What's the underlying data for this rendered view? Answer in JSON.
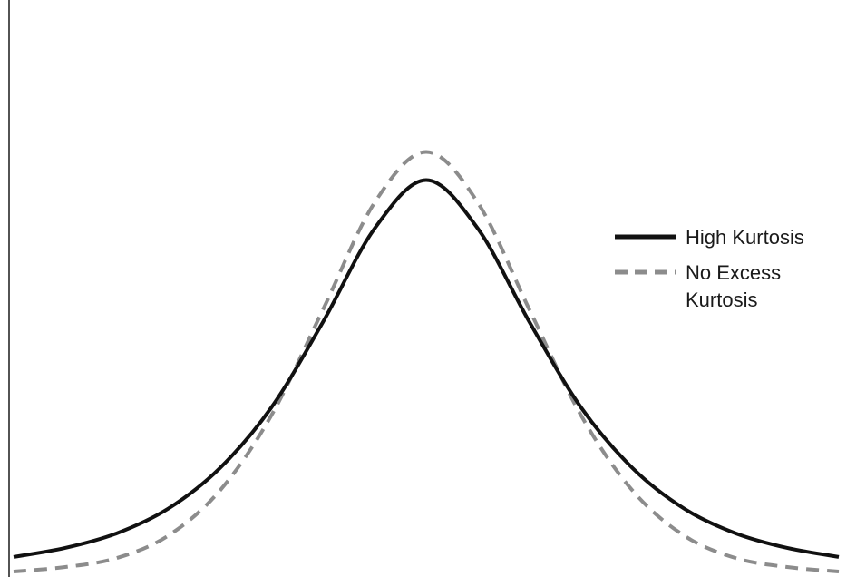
{
  "chart_data": {
    "type": "line",
    "title": "",
    "xlabel": "",
    "ylabel": "",
    "xlim": [
      -4,
      4
    ],
    "ylim": [
      0,
      0.45
    ],
    "grid": false,
    "legend_position": "right",
    "series": [
      {
        "name": "High Kurtosis",
        "style": "solid",
        "color": "#111111",
        "x": [
          -4.0,
          -3.5,
          -3.0,
          -2.5,
          -2.0,
          -1.5,
          -1.0,
          -0.5,
          0.0,
          0.5,
          1.0,
          1.5,
          2.0,
          2.5,
          3.0,
          3.5,
          4.0
        ],
        "y": [
          0.013,
          0.021,
          0.034,
          0.056,
          0.092,
          0.146,
          0.222,
          0.305,
          0.348,
          0.305,
          0.222,
          0.146,
          0.092,
          0.056,
          0.034,
          0.021,
          0.013
        ]
      },
      {
        "name": "No Excess Kurtosis",
        "style": "dashed",
        "color": "#8c8c8c",
        "x": [
          -4.0,
          -3.5,
          -3.0,
          -2.5,
          -2.0,
          -1.5,
          -1.0,
          -0.5,
          0.0,
          0.5,
          1.0,
          1.5,
          2.0,
          2.5,
          3.0,
          3.5,
          4.0
        ],
        "y": [
          0.0,
          0.004,
          0.012,
          0.032,
          0.072,
          0.139,
          0.233,
          0.328,
          0.373,
          0.328,
          0.233,
          0.139,
          0.072,
          0.032,
          0.012,
          0.004,
          0.0
        ]
      }
    ],
    "legend": [
      {
        "label_lines": [
          "High Kurtosis"
        ],
        "style": "solid",
        "color": "#111111"
      },
      {
        "label_lines": [
          "No Excess",
          "Kurtosis"
        ],
        "style": "dashed",
        "color": "#8c8c8c"
      }
    ]
  }
}
